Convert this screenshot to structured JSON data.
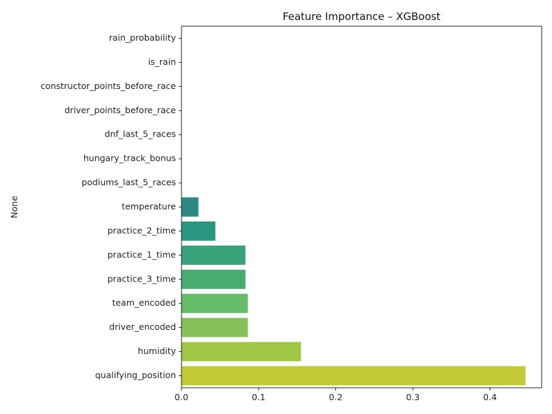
{
  "chart_data": {
    "type": "bar",
    "orientation": "horizontal",
    "title": "Feature Importance – XGBoost",
    "xlabel": "",
    "ylabel": "None",
    "categories": [
      "rain_probability",
      "is_rain",
      "constructor_points_before_race",
      "driver_points_before_race",
      "dnf_last_5_races",
      "hungary_track_bonus",
      "podiums_last_5_races",
      "temperature",
      "practice_2_time",
      "practice_1_time",
      "practice_3_time",
      "team_encoded",
      "driver_encoded",
      "humidity",
      "qualifying_position"
    ],
    "values": [
      0,
      0,
      0,
      0,
      0,
      0,
      0,
      0.022,
      0.044,
      0.083,
      0.083,
      0.086,
      0.086,
      0.155,
      0.446
    ],
    "colors": [
      "#433e85",
      "#3e4989",
      "#38598c",
      "#32648e",
      "#2d708e",
      "#287c8e",
      "#24878e",
      "#2a8a83",
      "#2b9680",
      "#38a27a",
      "#4aab72",
      "#66bb6a",
      "#85c25c",
      "#a2c645",
      "#c2cb35"
    ],
    "xlim": [
      0,
      0.467
    ],
    "xticks": [
      "0.0",
      "0.1",
      "0.2",
      "0.3",
      "0.4"
    ],
    "xtick_values": [
      0,
      0.1,
      0.2,
      0.3,
      0.4
    ],
    "grid": false,
    "legend": "none"
  }
}
